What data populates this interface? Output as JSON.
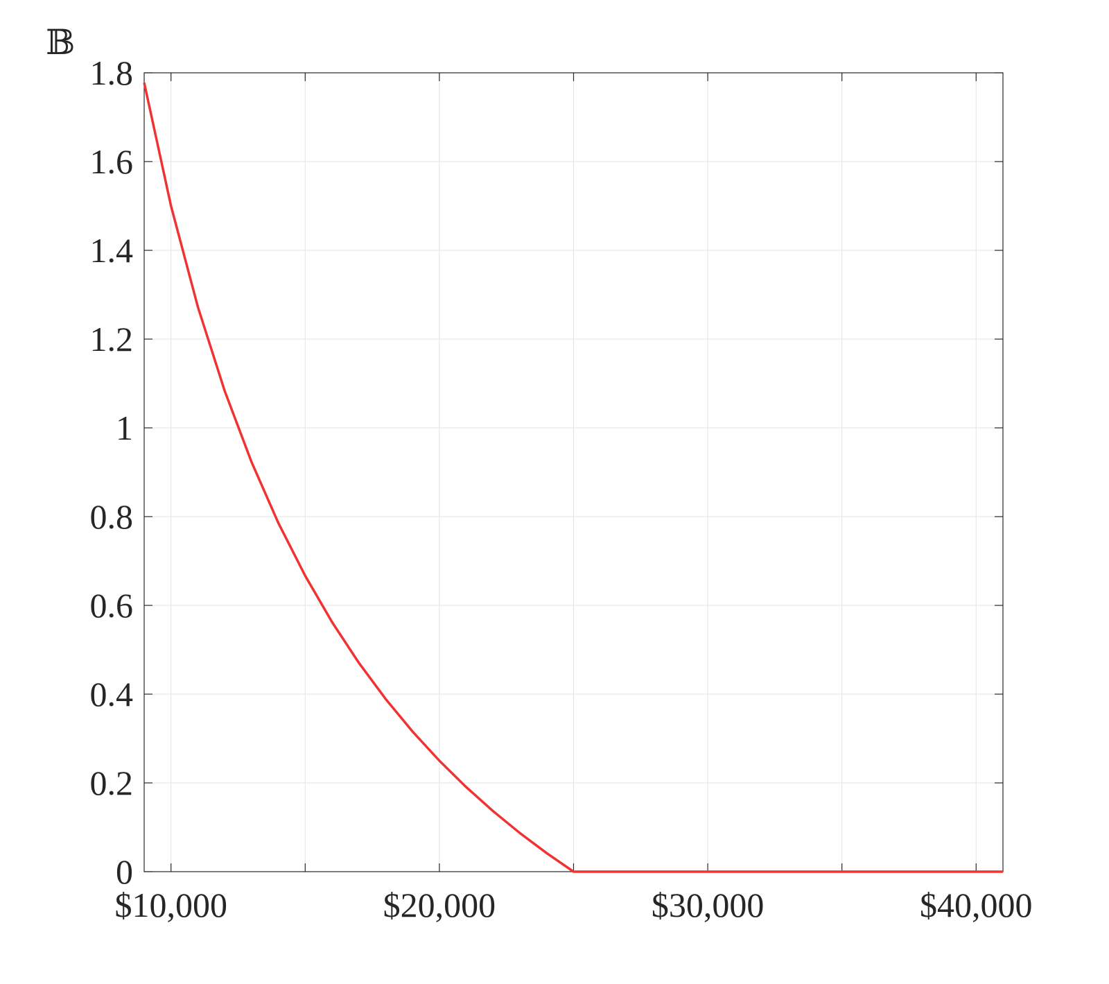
{
  "chart_data": {
    "type": "line",
    "ylabel": "𝔹",
    "x": [
      9000,
      10000,
      11000,
      12000,
      13000,
      14000,
      15000,
      16000,
      17000,
      18000,
      19000,
      20000,
      21000,
      22000,
      23000,
      24000,
      25000,
      41000
    ],
    "series": [
      {
        "color": "#f03232",
        "values": [
          1.7778,
          1.5,
          1.2727,
          1.0833,
          0.9231,
          0.7857,
          0.6667,
          0.5625,
          0.4706,
          0.3889,
          0.3158,
          0.25,
          0.1905,
          0.1364,
          0.087,
          0.0417,
          0,
          0
        ]
      }
    ],
    "xlim": [
      9000,
      41000
    ],
    "xticks": [
      {
        "value": 10000,
        "label": "$10,000"
      },
      {
        "value": 20000,
        "label": "$20,000"
      },
      {
        "value": 30000,
        "label": "$30,000"
      },
      {
        "value": 40000,
        "label": "$40,000"
      }
    ],
    "x_minor_ticks": [
      15000,
      25000,
      35000
    ],
    "ylim": [
      0,
      1.8
    ],
    "yticks": [
      0,
      0.2,
      0.4,
      0.6,
      0.8,
      1,
      1.2,
      1.4,
      1.6,
      1.8
    ],
    "grid": true
  }
}
